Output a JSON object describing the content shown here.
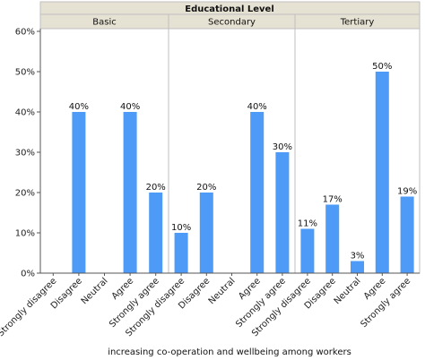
{
  "chart_data": {
    "type": "bar",
    "panel_header": "Educational Level",
    "panels": [
      "Basic",
      "Secondary",
      "Tertiary"
    ],
    "categories": [
      "Strongly disagree",
      "Disagree",
      "Neutral",
      "Agree",
      "Strongly agree"
    ],
    "values": [
      [
        null,
        40,
        null,
        40,
        20
      ],
      [
        10,
        20,
        null,
        40,
        30
      ],
      [
        11,
        17,
        3,
        50,
        19
      ]
    ],
    "data_labels": [
      [
        "",
        "40%",
        "",
        "40%",
        "20%"
      ],
      [
        "10%",
        "20%",
        "",
        "40%",
        "30%"
      ],
      [
        "11%",
        "17%",
        "3%",
        "50%",
        "19%"
      ]
    ],
    "yticks": [
      0,
      10,
      20,
      30,
      40,
      50,
      60
    ],
    "ytick_labels": [
      "0%",
      "10%",
      "20%",
      "30%",
      "40%",
      "50%",
      "60%"
    ],
    "ylim": [
      0,
      60
    ],
    "xlabel": "increasing co-operation and wellbeing among workers",
    "ylabel": "",
    "grid": false,
    "colors": {
      "bar": "#4d9bf7",
      "header_bg": "#e6e2d3",
      "panel_border": "#bfbfbf"
    }
  }
}
